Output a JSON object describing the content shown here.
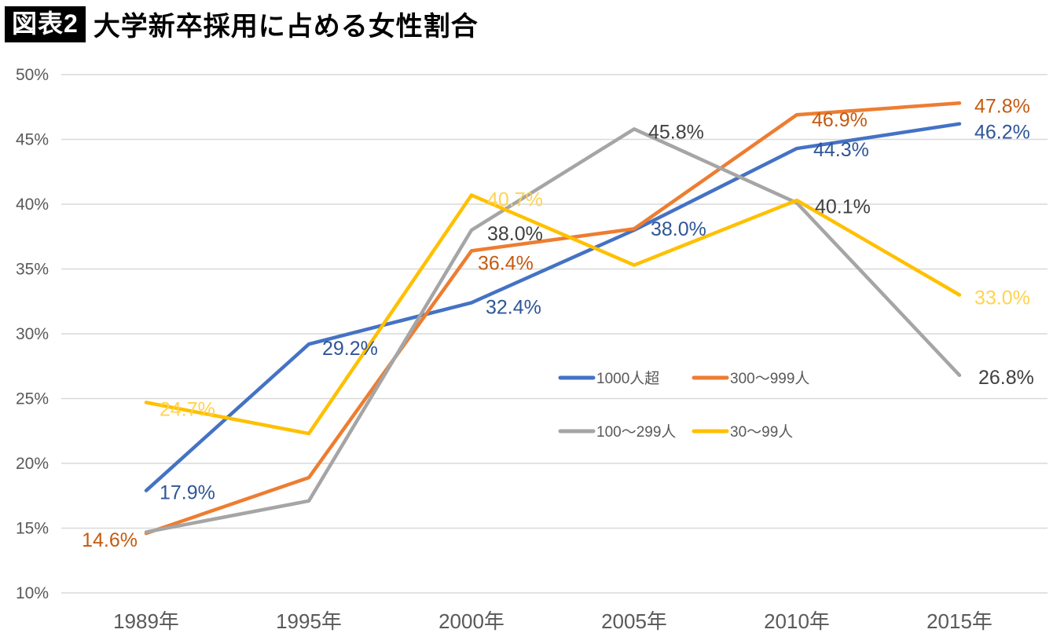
{
  "header": {
    "badge_label": "図表2",
    "title": "大学新卒採用に占める女性割合"
  },
  "chart_data": {
    "type": "line",
    "title": "大学新卒採用に占める女性割合",
    "categories": [
      "1989年",
      "1995年",
      "2000年",
      "2005年",
      "2010年",
      "2015年"
    ],
    "xlabel": "",
    "ylabel": "",
    "ylim": [
      10,
      50
    ],
    "y_tick_values": [
      10,
      15,
      20,
      25,
      30,
      35,
      40,
      45,
      50
    ],
    "y_tick_suffix": "%",
    "grid": true,
    "grid_color": "#d9d9d9",
    "axis_color": "#595959",
    "legend_position": "inside-center-right, 2x2 grid",
    "series": [
      {
        "key": "over-1000",
        "name": "1000人超",
        "color": "#4472C4",
        "label_color": "#2E5697",
        "values": [
          17.9,
          29.2,
          32.4,
          38.0,
          44.3,
          46.2
        ],
        "labels": {
          "0": {
            "dx": 17,
            "dy": 2
          },
          "1": {
            "dx": 17,
            "dy": 5
          },
          "2": {
            "dx": 18,
            "dy": 5
          },
          "3": {
            "dx": 21,
            "dy": -2
          },
          "4": {
            "dx": 21,
            "dy": 1
          },
          "5": {
            "dx": 19,
            "dy": 10
          }
        }
      },
      {
        "key": "300-999",
        "name": "300〜999人",
        "color": "#ED7D31",
        "label_color": "#C55A11",
        "values": [
          14.6,
          18.9,
          36.4,
          38.1,
          46.9,
          47.8
        ],
        "labels": {
          "0": {
            "dx": -11,
            "dy": 8,
            "anchor": "end"
          },
          "2": {
            "dx": 8,
            "dy": 15
          },
          "4": {
            "dx": 19,
            "dy": 6
          },
          "5": {
            "dx": 19,
            "dy": 3
          }
        }
      },
      {
        "key": "100-299",
        "name": "100〜299人",
        "color": "#A5A5A5",
        "label_color": "#404040",
        "values": [
          14.7,
          17.1,
          38.0,
          45.8,
          40.1,
          26.8
        ],
        "labels": {
          "2": {
            "dx": 20,
            "dy": 4
          },
          "3": {
            "dx": 18,
            "dy": 3
          },
          "4": {
            "dx": 23,
            "dy": 4
          },
          "5": {
            "dx": 24,
            "dy": 2
          }
        }
      },
      {
        "key": "30-99",
        "name": "30〜99人",
        "color": "#FFC000",
        "label_color": "#FFD34F",
        "values": [
          24.7,
          22.3,
          40.7,
          35.3,
          40.3,
          33.0
        ],
        "labels": {
          "0": {
            "dx": 17,
            "dy": 8
          },
          "2": {
            "dx": 20,
            "dy": 5
          },
          "5": {
            "dx": 19,
            "dy": 3
          }
        }
      }
    ]
  }
}
